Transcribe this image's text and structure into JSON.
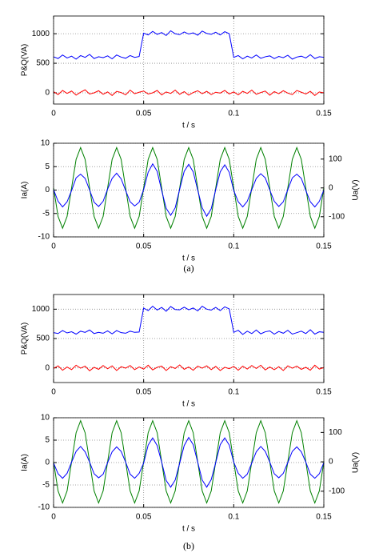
{
  "chart_data": [
    {
      "type": "line",
      "xlabel": "t / s",
      "ylabel": "P&Q(VA)",
      "grid": true,
      "xlim": [
        0,
        0.15
      ],
      "xticks": [
        0,
        0.05,
        0.1,
        0.15
      ],
      "ylim": [
        -190,
        1300
      ],
      "yticks": [
        0,
        500,
        1000
      ],
      "x": [
        0,
        0.0025,
        0.005,
        0.0075,
        0.01,
        0.0125,
        0.015,
        0.0175,
        0.02,
        0.0225,
        0.025,
        0.0275,
        0.03,
        0.0325,
        0.035,
        0.0375,
        0.04,
        0.0425,
        0.045,
        0.0475,
        0.05,
        0.0525,
        0.055,
        0.0575,
        0.06,
        0.0625,
        0.065,
        0.0675,
        0.07,
        0.0725,
        0.075,
        0.0775,
        0.08,
        0.0825,
        0.085,
        0.0875,
        0.09,
        0.0925,
        0.095,
        0.0975,
        0.1,
        0.1025,
        0.105,
        0.1075,
        0.11,
        0.1125,
        0.115,
        0.1175,
        0.12,
        0.1225,
        0.125,
        0.1275,
        0.13,
        0.1325,
        0.135,
        0.1375,
        0.14,
        0.1425,
        0.145,
        0.1475,
        0.15
      ],
      "series": [
        {
          "color": "#0000ff",
          "values": [
            610,
            580,
            640,
            590,
            620,
            570,
            630,
            600,
            650,
            580,
            610,
            595,
            625,
            575,
            640,
            605,
            585,
            630,
            600,
            615,
            1010,
            980,
            1040,
            990,
            1020,
            970,
            1050,
            1000,
            985,
            1030,
            995,
            1015,
            975,
            1045,
            1005,
            990,
            1025,
            980,
            1035,
            1000,
            600,
            630,
            575,
            620,
            590,
            640,
            585,
            610,
            625,
            580,
            615,
            595,
            635,
            570,
            605,
            620,
            590,
            645,
            580,
            610,
            600
          ]
        },
        {
          "color": "#ff0000",
          "values": [
            20,
            -30,
            40,
            -10,
            30,
            -40,
            10,
            50,
            -20,
            0,
            35,
            -25,
            15,
            -45,
            25,
            5,
            -35,
            45,
            -15,
            10,
            30,
            -20,
            0,
            40,
            -35,
            15,
            -10,
            45,
            -25,
            20,
            -40,
            5,
            35,
            -15,
            25,
            -30,
            10,
            -5,
            40,
            -20,
            15,
            -35,
            25,
            -10,
            45,
            -25,
            5,
            30,
            -40,
            20,
            -15,
            35,
            -5,
            -30,
            40,
            10,
            -20,
            25,
            -45,
            15,
            0
          ]
        }
      ]
    },
    {
      "type": "line",
      "xlabel": "t / s",
      "ylabel": "Ia(A)",
      "y2label": "Ua(V)",
      "grid": true,
      "xlim": [
        0,
        0.15
      ],
      "xticks": [
        0,
        0.05,
        0.1,
        0.15
      ],
      "ylim": [
        -10,
        10
      ],
      "yticks": [
        -10,
        -5,
        0,
        5,
        10
      ],
      "y2lim": [
        -170,
        155
      ],
      "y2ticks": [
        -100,
        0,
        100
      ],
      "x": [
        0,
        0.0025,
        0.005,
        0.0075,
        0.01,
        0.0125,
        0.015,
        0.0175,
        0.02,
        0.0225,
        0.025,
        0.0275,
        0.03,
        0.0325,
        0.035,
        0.0375,
        0.04,
        0.0425,
        0.045,
        0.0475,
        0.05,
        0.0525,
        0.055,
        0.0575,
        0.06,
        0.0625,
        0.065,
        0.0675,
        0.07,
        0.0725,
        0.075,
        0.0775,
        0.08,
        0.0825,
        0.085,
        0.0875,
        0.09,
        0.0925,
        0.095,
        0.0975,
        0.1,
        0.1025,
        0.105,
        0.1075,
        0.11,
        0.1125,
        0.115,
        0.1175,
        0.12,
        0.1225,
        0.125,
        0.1275,
        0.13,
        0.1325,
        0.135,
        0.1375,
        0.14,
        0.1425,
        0.145,
        0.1475,
        0.15
      ],
      "series": [
        {
          "color": "#008000",
          "axis": "y2",
          "values": [
            0,
            -99,
            -140,
            -99,
            0,
            99,
            140,
            99,
            0,
            -99,
            -140,
            -99,
            0,
            99,
            140,
            99,
            0,
            -99,
            -140,
            -99,
            0,
            99,
            140,
            99,
            0,
            -99,
            -140,
            -99,
            0,
            99,
            140,
            99,
            0,
            -99,
            -140,
            -99,
            0,
            99,
            140,
            99,
            0,
            -99,
            -140,
            -99,
            0,
            99,
            140,
            99,
            0,
            -99,
            -140,
            -99,
            0,
            99,
            140,
            99,
            0,
            -99,
            -140,
            -99,
            0
          ]
        },
        {
          "color": "#0000ff",
          "values": [
            0.1,
            -2.4,
            -3.6,
            -2.5,
            -0.1,
            2.6,
            3.4,
            2.5,
            0,
            -2.6,
            -3.5,
            -2.4,
            0.2,
            2.5,
            3.6,
            2.4,
            -0.1,
            -2.5,
            -3.4,
            -2.6,
            0.1,
            3.8,
            5.6,
            4.0,
            -0.1,
            -3.9,
            -5.4,
            -3.8,
            0.2,
            4.0,
            5.5,
            3.9,
            0,
            -3.8,
            -5.6,
            -4.0,
            0.1,
            3.9,
            5.4,
            3.8,
            -0.1,
            -2.5,
            -3.6,
            -2.4,
            0.1,
            2.5,
            3.5,
            2.6,
            0,
            -2.4,
            -3.5,
            -2.5,
            0.1,
            2.6,
            3.4,
            2.5,
            -0.1,
            -2.5,
            -3.6,
            -2.4,
            0
          ]
        }
      ]
    },
    {
      "type": "line",
      "xlabel": "t / s",
      "ylabel": "P&Q(VA)",
      "grid": true,
      "xlim": [
        0,
        0.15
      ],
      "xticks": [
        0,
        0.05,
        0.1,
        0.15
      ],
      "ylim": [
        -250,
        1250
      ],
      "yticks": [
        0,
        500,
        1000
      ],
      "x": [
        0,
        0.0025,
        0.005,
        0.0075,
        0.01,
        0.0125,
        0.015,
        0.0175,
        0.02,
        0.0225,
        0.025,
        0.0275,
        0.03,
        0.0325,
        0.035,
        0.0375,
        0.04,
        0.0425,
        0.045,
        0.0475,
        0.05,
        0.0525,
        0.055,
        0.0575,
        0.06,
        0.0625,
        0.065,
        0.0675,
        0.07,
        0.0725,
        0.075,
        0.0775,
        0.08,
        0.0825,
        0.085,
        0.0875,
        0.09,
        0.0925,
        0.095,
        0.0975,
        0.1,
        0.1025,
        0.105,
        0.1075,
        0.11,
        0.1125,
        0.115,
        0.1175,
        0.12,
        0.1225,
        0.125,
        0.1275,
        0.13,
        0.1325,
        0.135,
        0.1375,
        0.14,
        0.1425,
        0.145,
        0.1475,
        0.15
      ],
      "series": [
        {
          "color": "#0000ff",
          "values": [
            600,
            585,
            635,
            595,
            615,
            575,
            625,
            605,
            645,
            585,
            605,
            590,
            630,
            580,
            635,
            600,
            590,
            625,
            605,
            610,
            1020,
            975,
            1050,
            985,
            1030,
            965,
            1045,
            995,
            990,
            1035,
            990,
            1020,
            970,
            1050,
            1000,
            985,
            1030,
            975,
            1040,
            1005,
            605,
            640,
            570,
            625,
            585,
            645,
            580,
            615,
            630,
            575,
            620,
            590,
            640,
            575,
            600,
            625,
            585,
            650,
            575,
            615,
            605
          ]
        },
        {
          "color": "#ff0000",
          "values": [
            -10,
            35,
            -40,
            15,
            -30,
            45,
            -5,
            30,
            -50,
            10,
            -25,
            40,
            -15,
            35,
            -45,
            20,
            -5,
            40,
            -30,
            15,
            -20,
            45,
            -35,
            10,
            30,
            -45,
            20,
            -10,
            50,
            -25,
            15,
            -40,
            30,
            -5,
            35,
            -30,
            25,
            -45,
            10,
            -15,
            25,
            -40,
            30,
            -20,
            40,
            -10,
            45,
            -35,
            15,
            -30,
            20,
            -45,
            35,
            -5,
            30,
            -25,
            10,
            -40,
            45,
            -20,
            5
          ]
        }
      ]
    },
    {
      "type": "line",
      "xlabel": "t / s",
      "ylabel": "Ia(A)",
      "y2label": "Ua(V)",
      "grid": true,
      "xlim": [
        0,
        0.15
      ],
      "xticks": [
        0,
        0.05,
        0.1,
        0.15
      ],
      "ylim": [
        -10,
        10
      ],
      "yticks": [
        -10,
        -5,
        0,
        5,
        10
      ],
      "y2lim": [
        -155,
        150
      ],
      "y2ticks": [
        -100,
        0,
        100
      ],
      "x": [
        0,
        0.0025,
        0.005,
        0.0075,
        0.01,
        0.0125,
        0.015,
        0.0175,
        0.02,
        0.0225,
        0.025,
        0.0275,
        0.03,
        0.0325,
        0.035,
        0.0375,
        0.04,
        0.0425,
        0.045,
        0.0475,
        0.05,
        0.0525,
        0.055,
        0.0575,
        0.06,
        0.0625,
        0.065,
        0.0675,
        0.07,
        0.0725,
        0.075,
        0.0775,
        0.08,
        0.0825,
        0.085,
        0.0875,
        0.09,
        0.0925,
        0.095,
        0.0975,
        0.1,
        0.1025,
        0.105,
        0.1075,
        0.11,
        0.1125,
        0.115,
        0.1175,
        0.12,
        0.1225,
        0.125,
        0.1275,
        0.13,
        0.1325,
        0.135,
        0.1375,
        0.14,
        0.1425,
        0.145,
        0.1475,
        0.15
      ],
      "series": [
        {
          "color": "#008000",
          "axis": "y2",
          "values": [
            0,
            -99,
            -140,
            -99,
            0,
            99,
            140,
            99,
            0,
            -99,
            -140,
            -99,
            0,
            99,
            140,
            99,
            0,
            -99,
            -140,
            -99,
            0,
            99,
            140,
            99,
            0,
            -99,
            -140,
            -99,
            0,
            99,
            140,
            99,
            0,
            -99,
            -140,
            -99,
            0,
            99,
            140,
            99,
            0,
            -99,
            -140,
            -99,
            0,
            99,
            140,
            99,
            0,
            -99,
            -140,
            -99,
            0,
            99,
            140,
            99,
            0,
            -99,
            -140,
            -99,
            0
          ]
        },
        {
          "color": "#0000ff",
          "values": [
            -0.1,
            -2.5,
            -3.5,
            -2.4,
            0.1,
            2.5,
            3.6,
            2.4,
            0.1,
            -2.5,
            -3.4,
            -2.6,
            0,
            2.4,
            3.5,
            2.5,
            0.1,
            -2.6,
            -3.5,
            -2.4,
            -0.1,
            3.9,
            5.5,
            3.8,
            0.1,
            -4.0,
            -5.5,
            -3.9,
            -0.1,
            3.8,
            5.6,
            4.0,
            0.1,
            -3.9,
            -5.5,
            -3.8,
            0,
            4.0,
            5.5,
            3.9,
            0.1,
            -2.4,
            -3.5,
            -2.6,
            -0.1,
            2.4,
            3.6,
            2.5,
            0.1,
            -2.5,
            -3.4,
            -2.4,
            0,
            2.5,
            3.5,
            2.4,
            0.1,
            -2.6,
            -3.5,
            -2.5,
            0
          ]
        }
      ]
    }
  ],
  "captions": [
    "(a)",
    "(b)"
  ]
}
